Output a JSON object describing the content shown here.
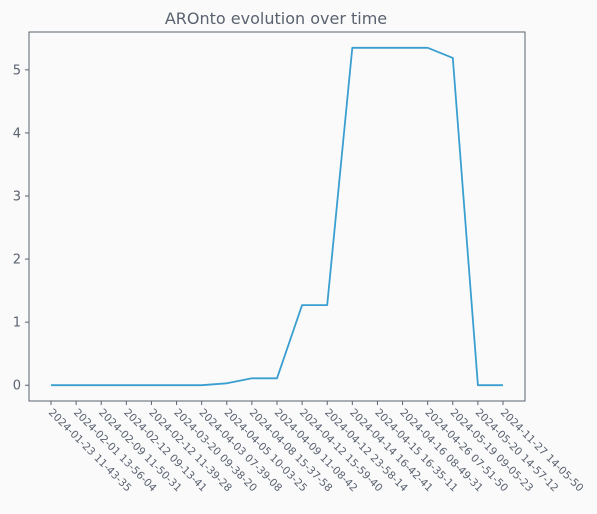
{
  "chart_data": {
    "type": "line",
    "title": "AROnto evolution over time",
    "xlabel": "",
    "ylabel": "",
    "categories": [
      "2024-01-23 11-43-35",
      "2024-02-01 13-56-04",
      "2024-02-09 11-50-31",
      "2024-02-12 09-13-41",
      "2024-02-12 11-39-28",
      "2024-03-20 09-38-20",
      "2024-04-03 07-39-08",
      "2024-04-05 10-03-25",
      "2024-04-08 15-37-58",
      "2024-04-09 11-08-42",
      "2024-04-12 15-59-40",
      "2024-04-12 23-58-14",
      "2024-04-14 16-42-41",
      "2024-04-15 16-35-11",
      "2024-04-16 08-49-31",
      "2024-04-26 07-51-50",
      "2024-05-19 09-05-23",
      "2024-05-20 14-57-12",
      "2024-11-27 14-05-50"
    ],
    "series": [
      {
        "values": [
          0,
          0,
          0,
          0,
          0,
          0,
          0,
          0.03,
          0.11,
          0.11,
          1.27,
          1.27,
          5.35,
          5.35,
          5.35,
          5.35,
          5.19,
          0,
          0
        ],
        "color": "#3a9fd0"
      }
    ],
    "ylim": [
      -0.25,
      5.6
    ],
    "yticks": [
      0,
      1,
      2,
      3,
      4,
      5
    ],
    "grid": false,
    "legend": "none"
  }
}
